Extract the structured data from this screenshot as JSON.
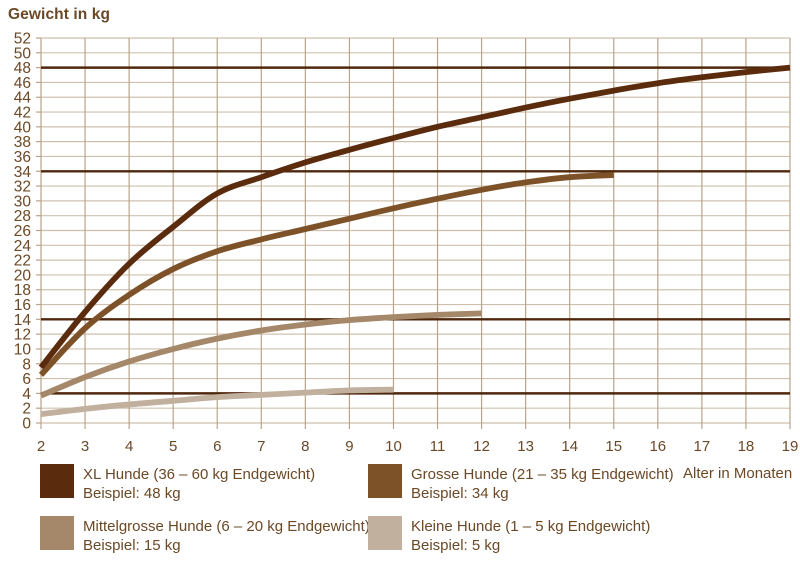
{
  "colors": {
    "background": "#ffffff",
    "text": "#6b4826",
    "grid_horizontal": "#cfc0ae",
    "grid_vertical": "#b9a48b",
    "reference_line": "#4f270c",
    "xl": "#5b2b0e",
    "grosse": "#7d5228",
    "mittelgrosse": "#a58769",
    "kleine": "#c2b09f"
  },
  "chart_data": {
    "type": "line",
    "title": "Gewicht in kg",
    "xlabel": "Alter in Monaten",
    "ylabel": "Gewicht in kg",
    "xlim": [
      2,
      19
    ],
    "ylim": [
      0,
      52
    ],
    "grid": true,
    "legend_position": "bottom",
    "x_ticks": [
      2,
      3,
      4,
      5,
      6,
      7,
      8,
      9,
      10,
      11,
      12,
      13,
      14,
      15,
      16,
      17,
      18,
      19
    ],
    "y_ticks": [
      0,
      2,
      4,
      6,
      8,
      10,
      12,
      14,
      16,
      18,
      20,
      22,
      24,
      26,
      28,
      30,
      32,
      34,
      36,
      38,
      40,
      42,
      44,
      46,
      48,
      50,
      52
    ],
    "reference_lines": [
      48,
      34,
      14,
      4
    ],
    "series": [
      {
        "name": "XL Hunde (36 – 60 kg Endgewicht)",
        "example": "Beispiel: 48 kg",
        "final_weight_kg": 48,
        "color": "#5b2b0e",
        "x": [
          2,
          3,
          4,
          5,
          6,
          7,
          8,
          9,
          10,
          11,
          12,
          13,
          14,
          15,
          16,
          17,
          18,
          19
        ],
        "y": [
          7.5,
          15,
          21.5,
          26.5,
          31,
          33.2,
          35.2,
          36.9,
          38.5,
          40,
          41.3,
          42.6,
          43.8,
          44.9,
          45.9,
          46.7,
          47.4,
          48
        ]
      },
      {
        "name": "Grosse Hunde (21 – 35 kg Endgewicht)",
        "example": "Beispiel: 34 kg",
        "final_weight_kg": 34,
        "color": "#7d5228",
        "x": [
          2,
          3,
          4,
          5,
          6,
          7,
          8,
          9,
          10,
          11,
          12,
          13,
          14,
          15
        ],
        "y": [
          6.5,
          12.8,
          17.3,
          20.8,
          23.2,
          24.8,
          26.2,
          27.6,
          29,
          30.3,
          31.5,
          32.5,
          33.2,
          33.5
        ]
      },
      {
        "name": "Mittelgrosse Hunde (6 – 20 kg Endgewicht)",
        "example": "Beispiel: 15 kg",
        "final_weight_kg": 15,
        "color": "#a58769",
        "x": [
          2,
          3,
          4,
          5,
          6,
          7,
          8,
          9,
          10,
          11,
          12
        ],
        "y": [
          3.7,
          6.2,
          8.3,
          10,
          11.4,
          12.5,
          13.3,
          13.9,
          14.3,
          14.6,
          14.8
        ]
      },
      {
        "name": "Kleine Hunde (1 – 5 kg Endgewicht)",
        "example": "Beispiel: 5 kg",
        "final_weight_kg": 5,
        "color": "#c2b09f",
        "x": [
          2,
          3,
          4,
          5,
          6,
          7,
          8,
          9,
          10
        ],
        "y": [
          1.2,
          1.9,
          2.5,
          3,
          3.5,
          3.8,
          4.1,
          4.4,
          4.5
        ]
      }
    ]
  }
}
